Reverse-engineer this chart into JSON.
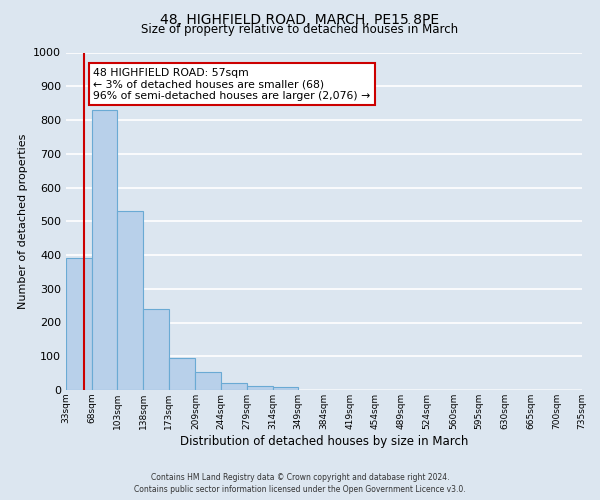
{
  "title": "48, HIGHFIELD ROAD, MARCH, PE15 8PE",
  "subtitle": "Size of property relative to detached houses in March",
  "xlabel": "Distribution of detached houses by size in March",
  "ylabel": "Number of detached properties",
  "bar_left_edges": [
    33,
    68,
    103,
    138,
    173,
    209,
    244,
    279,
    314,
    349,
    384,
    419,
    454,
    489,
    524,
    560,
    595,
    630,
    665,
    700
  ],
  "bar_heights": [
    390,
    830,
    530,
    240,
    95,
    52,
    20,
    12,
    8,
    0,
    0,
    0,
    0,
    0,
    0,
    0,
    0,
    0,
    0,
    0
  ],
  "bin_width": 35,
  "xlim": [
    33,
    735
  ],
  "ylim": [
    0,
    1000
  ],
  "yticks": [
    0,
    100,
    200,
    300,
    400,
    500,
    600,
    700,
    800,
    900,
    1000
  ],
  "xtick_labels": [
    "33sqm",
    "68sqm",
    "103sqm",
    "138sqm",
    "173sqm",
    "209sqm",
    "244sqm",
    "279sqm",
    "314sqm",
    "349sqm",
    "384sqm",
    "419sqm",
    "454sqm",
    "489sqm",
    "524sqm",
    "560sqm",
    "595sqm",
    "630sqm",
    "665sqm",
    "700sqm",
    "735sqm"
  ],
  "xtick_positions": [
    33,
    68,
    103,
    138,
    173,
    209,
    244,
    279,
    314,
    349,
    384,
    419,
    454,
    489,
    524,
    560,
    595,
    630,
    665,
    700,
    735
  ],
  "bar_color": "#b8d0ea",
  "bar_edge_color": "#6aaad4",
  "bg_color": "#dce6f0",
  "grid_color": "#ffffff",
  "vline_x": 57,
  "vline_color": "#cc0000",
  "annotation_text": "48 HIGHFIELD ROAD: 57sqm\n← 3% of detached houses are smaller (68)\n96% of semi-detached houses are larger (2,076) →",
  "annotation_box_color": "#ffffff",
  "annotation_box_edge": "#cc0000",
  "footer_line1": "Contains HM Land Registry data © Crown copyright and database right 2024.",
  "footer_line2": "Contains public sector information licensed under the Open Government Licence v3.0."
}
